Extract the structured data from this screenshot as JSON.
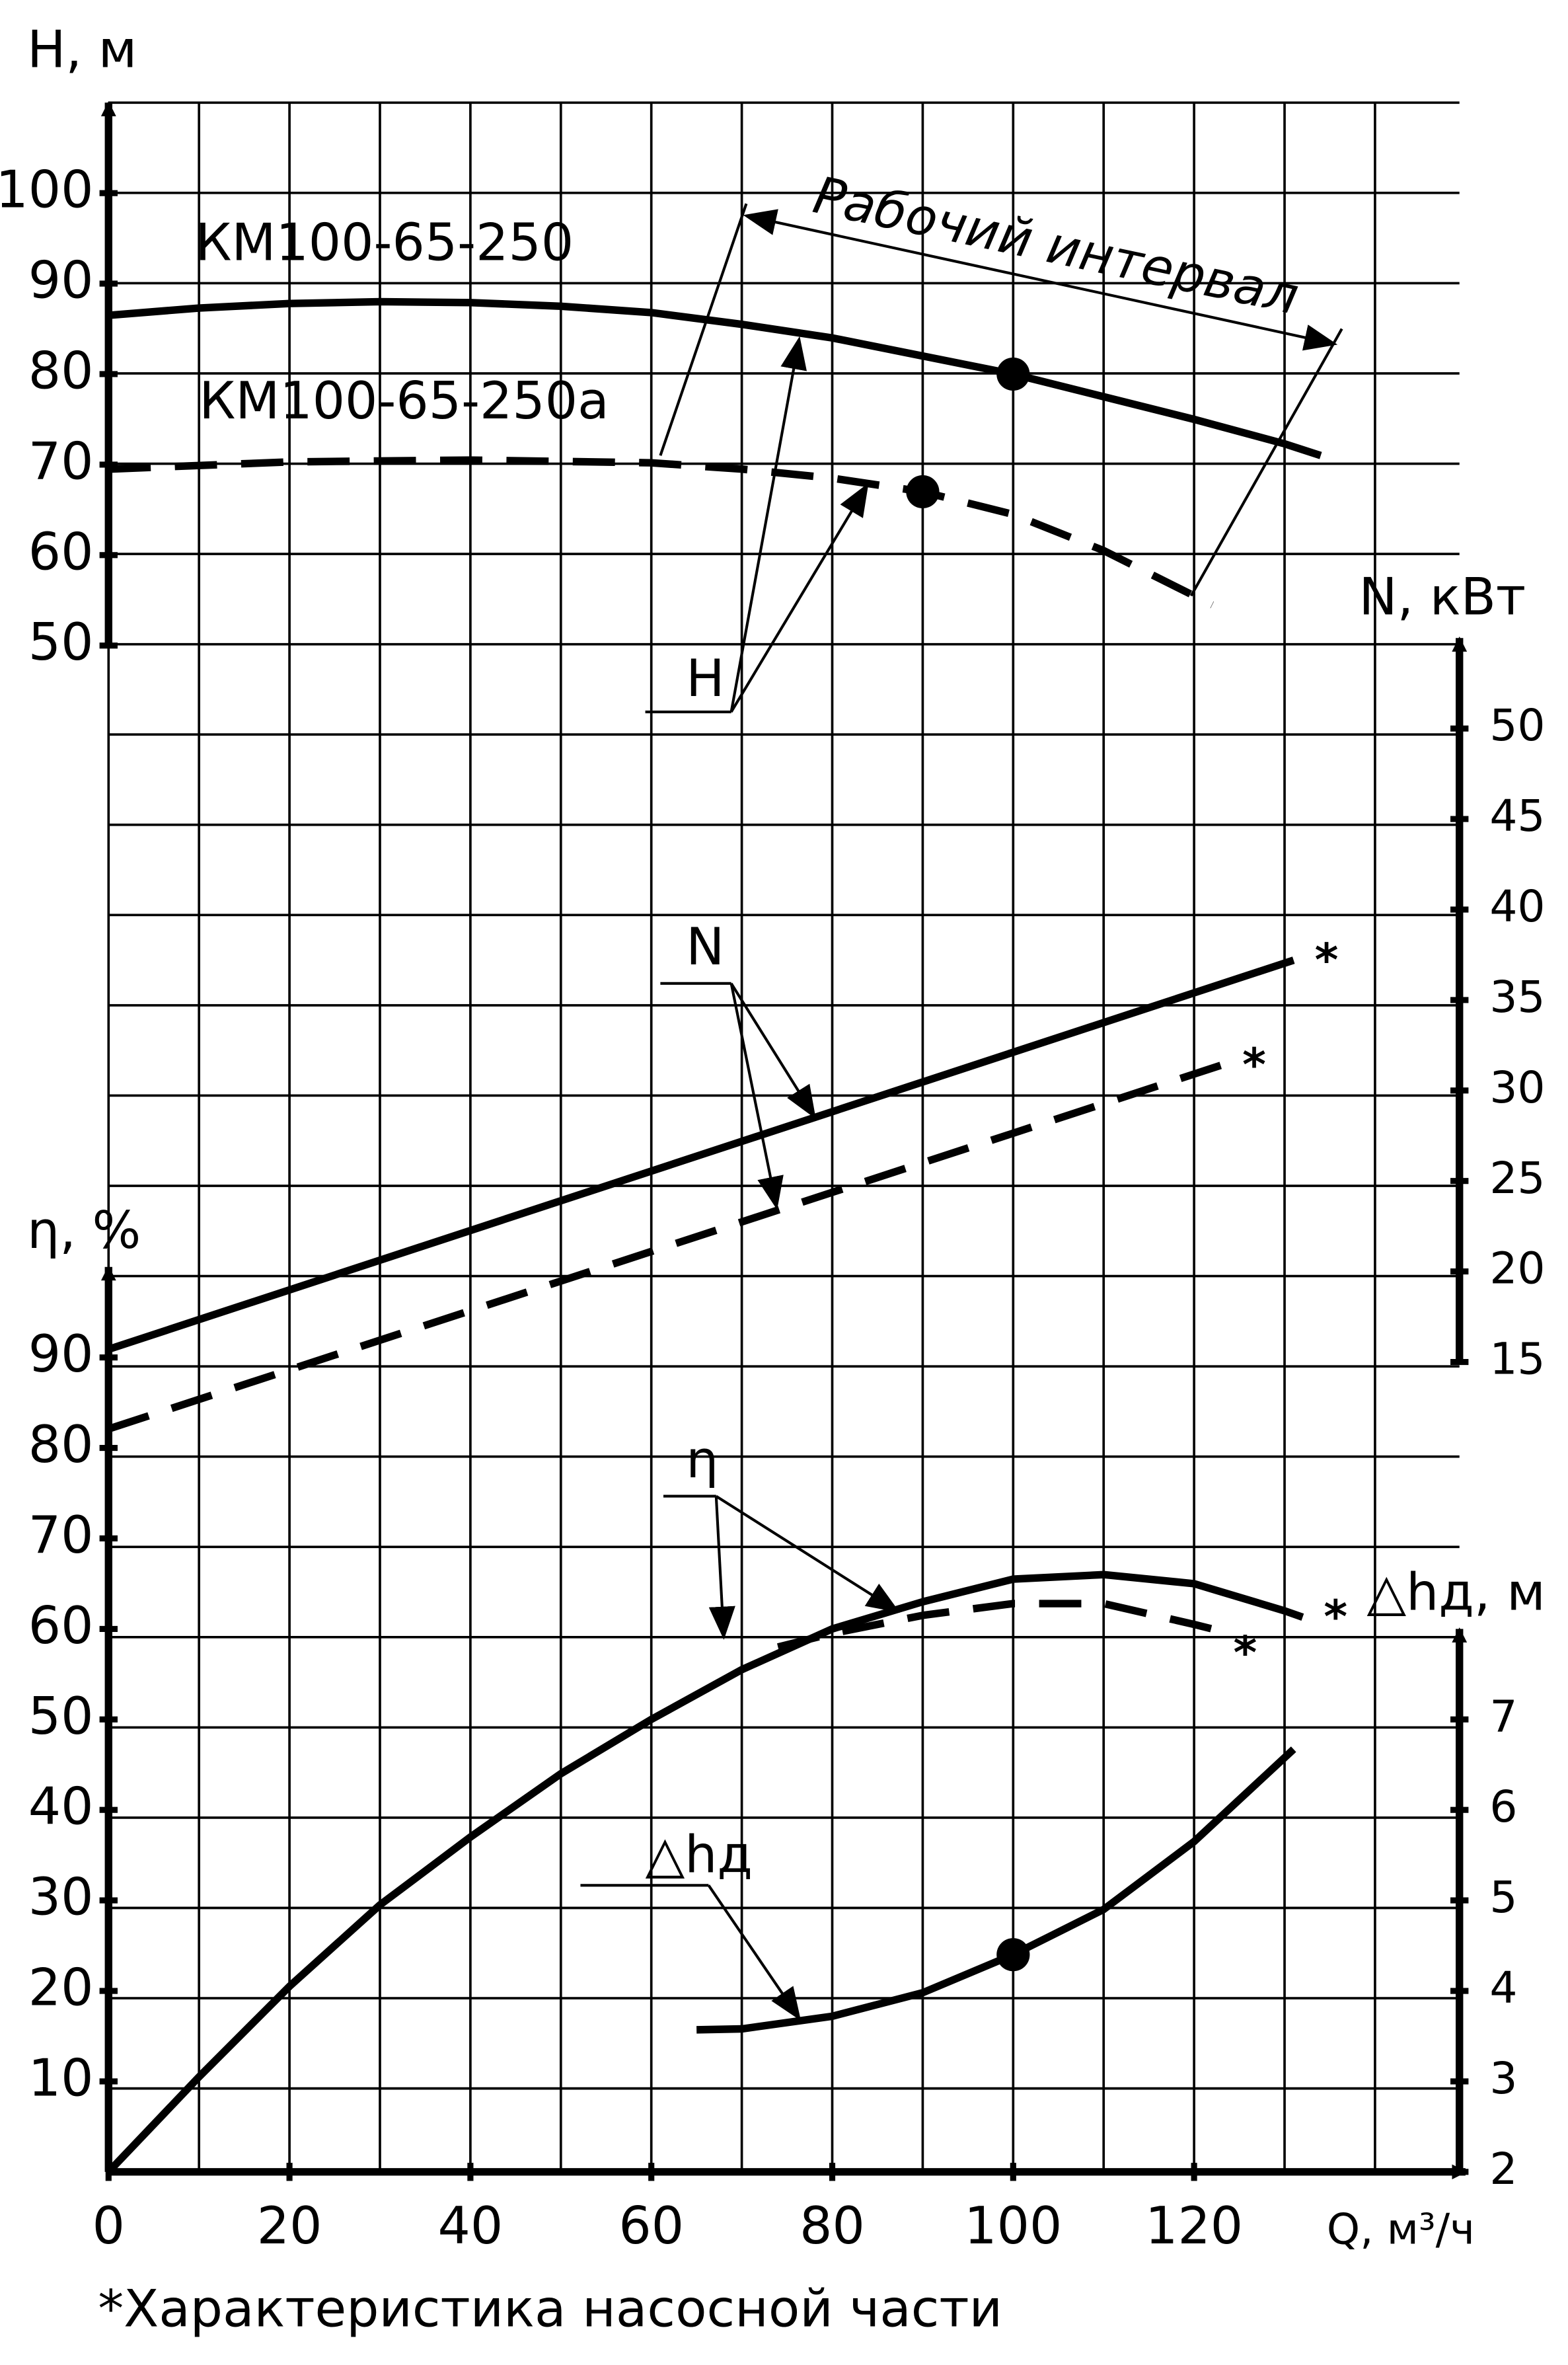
{
  "chart_data": [
    {
      "type": "line",
      "ylabel": "H, м",
      "curve_label": "H",
      "annotation": "Рабочий интервал",
      "xlim": [
        0,
        150
      ],
      "ylim": [
        50,
        110
      ],
      "yticks": [
        50,
        60,
        70,
        80,
        90,
        100
      ],
      "grid": true,
      "series": [
        {
          "name": "КМ100-65-250",
          "style": "solid",
          "color": "#000000",
          "x": [
            0,
            10,
            20,
            30,
            40,
            50,
            60,
            70,
            80,
            90,
            100,
            110,
            120,
            130,
            134
          ],
          "values": [
            86.5,
            87.3,
            87.8,
            88,
            87.9,
            87.5,
            86.8,
            85.5,
            84,
            82,
            80,
            77.5,
            75,
            72.3,
            71
          ],
          "marker": {
            "x": 100,
            "y": 80
          }
        },
        {
          "name": "КМ100-65-250а",
          "style": "dashed",
          "color": "#000000",
          "x": [
            0,
            20,
            40,
            60,
            70,
            80,
            90,
            100,
            110,
            120,
            122
          ],
          "values": [
            69.5,
            70.3,
            70.5,
            70.2,
            69.5,
            68.5,
            67,
            64.5,
            60.5,
            55.5,
            54.5
          ],
          "marker": {
            "x": 90,
            "y": 67
          }
        }
      ]
    },
    {
      "type": "line",
      "ylabel": "N, кВт",
      "curve_label": "N",
      "xlim": [
        0,
        150
      ],
      "ylim": [
        15,
        55
      ],
      "yticks": [
        15,
        20,
        25,
        30,
        35,
        40,
        45,
        50
      ],
      "series": [
        {
          "style": "solid",
          "color": "#000000",
          "x": [
            0,
            131
          ],
          "values": [
            15.7,
            37.2
          ],
          "end_label": "*"
        },
        {
          "style": "dashed",
          "color": "#000000",
          "x": [
            0,
            123
          ],
          "values": [
            11.3,
            31.4
          ],
          "end_label": "*"
        }
      ]
    },
    {
      "type": "line",
      "ylabel": "η, %",
      "curve_label": "η",
      "xlabel": "Q, м³/ч",
      "xlim": [
        0,
        150
      ],
      "xticks": [
        0,
        20,
        40,
        60,
        80,
        100,
        120
      ],
      "ylim": [
        0,
        100
      ],
      "yticks": [
        10,
        20,
        30,
        40,
        50,
        60,
        70,
        80,
        90
      ],
      "series": [
        {
          "style": "solid",
          "color": "#000000",
          "x": [
            0,
            10,
            20,
            30,
            40,
            50,
            60,
            70,
            80,
            90,
            100,
            110,
            120,
            130,
            132
          ],
          "values": [
            0,
            10.5,
            20.5,
            29.5,
            37,
            44,
            50,
            55.5,
            60,
            63,
            65.5,
            66,
            65,
            62,
            61.3
          ],
          "end_label": "*"
        },
        {
          "style": "dashed",
          "color": "#000000",
          "x": [
            74,
            80,
            90,
            100,
            110,
            120,
            122
          ],
          "values": [
            58,
            59.5,
            61.5,
            62.8,
            62.8,
            60.5,
            60
          ],
          "end_label": "*"
        }
      ]
    },
    {
      "type": "line",
      "ylabel": "△hд, м",
      "curve_label": "△hд",
      "xlim": [
        0,
        150
      ],
      "ylim": [
        2,
        8
      ],
      "yticks": [
        2,
        3,
        4,
        5,
        6,
        7
      ],
      "series": [
        {
          "style": "solid",
          "color": "#000000",
          "x": [
            65,
            70,
            80,
            90,
            100,
            110,
            120,
            131
          ],
          "values": [
            3.57,
            3.58,
            3.72,
            3.98,
            4.4,
            4.9,
            5.65,
            6.67
          ],
          "marker": {
            "x": 100,
            "y": 4.4
          }
        }
      ]
    }
  ],
  "footnote": "*Характеристика насосной части"
}
